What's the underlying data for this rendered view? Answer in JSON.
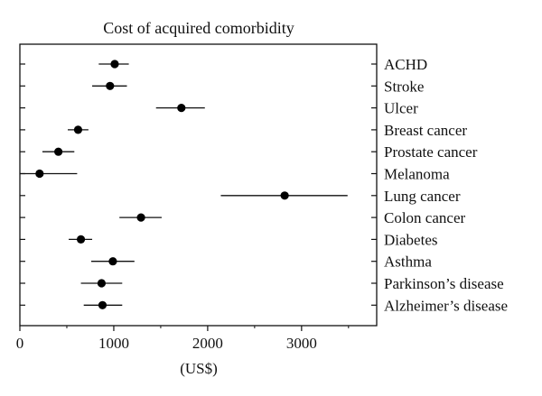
{
  "chart_data": {
    "type": "scatter",
    "title": "Cost of acquired comorbidity",
    "xlabel": "(US$)",
    "ylabel": "",
    "xlim": [
      0,
      3800
    ],
    "x_ticks": [
      0,
      1000,
      2000,
      3000
    ],
    "x_tick_labels": [
      "0",
      "1000",
      "2000",
      "3000"
    ],
    "grid": false,
    "categories": [
      "ACHD",
      "Stroke",
      "Ulcer",
      "Breast cancer",
      "Prostate cancer",
      "Melanoma",
      "Lung cancer",
      "Colon cancer",
      "Diabetes",
      "Asthma",
      "Parkinson’s disease",
      "Alzheimer’s disease"
    ],
    "series": [
      {
        "estimates": [
          1010,
          960,
          1720,
          620,
          410,
          210,
          2820,
          1290,
          650,
          990,
          870,
          880
        ],
        "ci_low": [
          840,
          770,
          1450,
          510,
          240,
          0,
          2140,
          1060,
          520,
          760,
          650,
          680
        ],
        "ci_high": [
          1160,
          1140,
          1970,
          730,
          580,
          610,
          3490,
          1510,
          770,
          1220,
          1090,
          1090
        ]
      }
    ]
  }
}
